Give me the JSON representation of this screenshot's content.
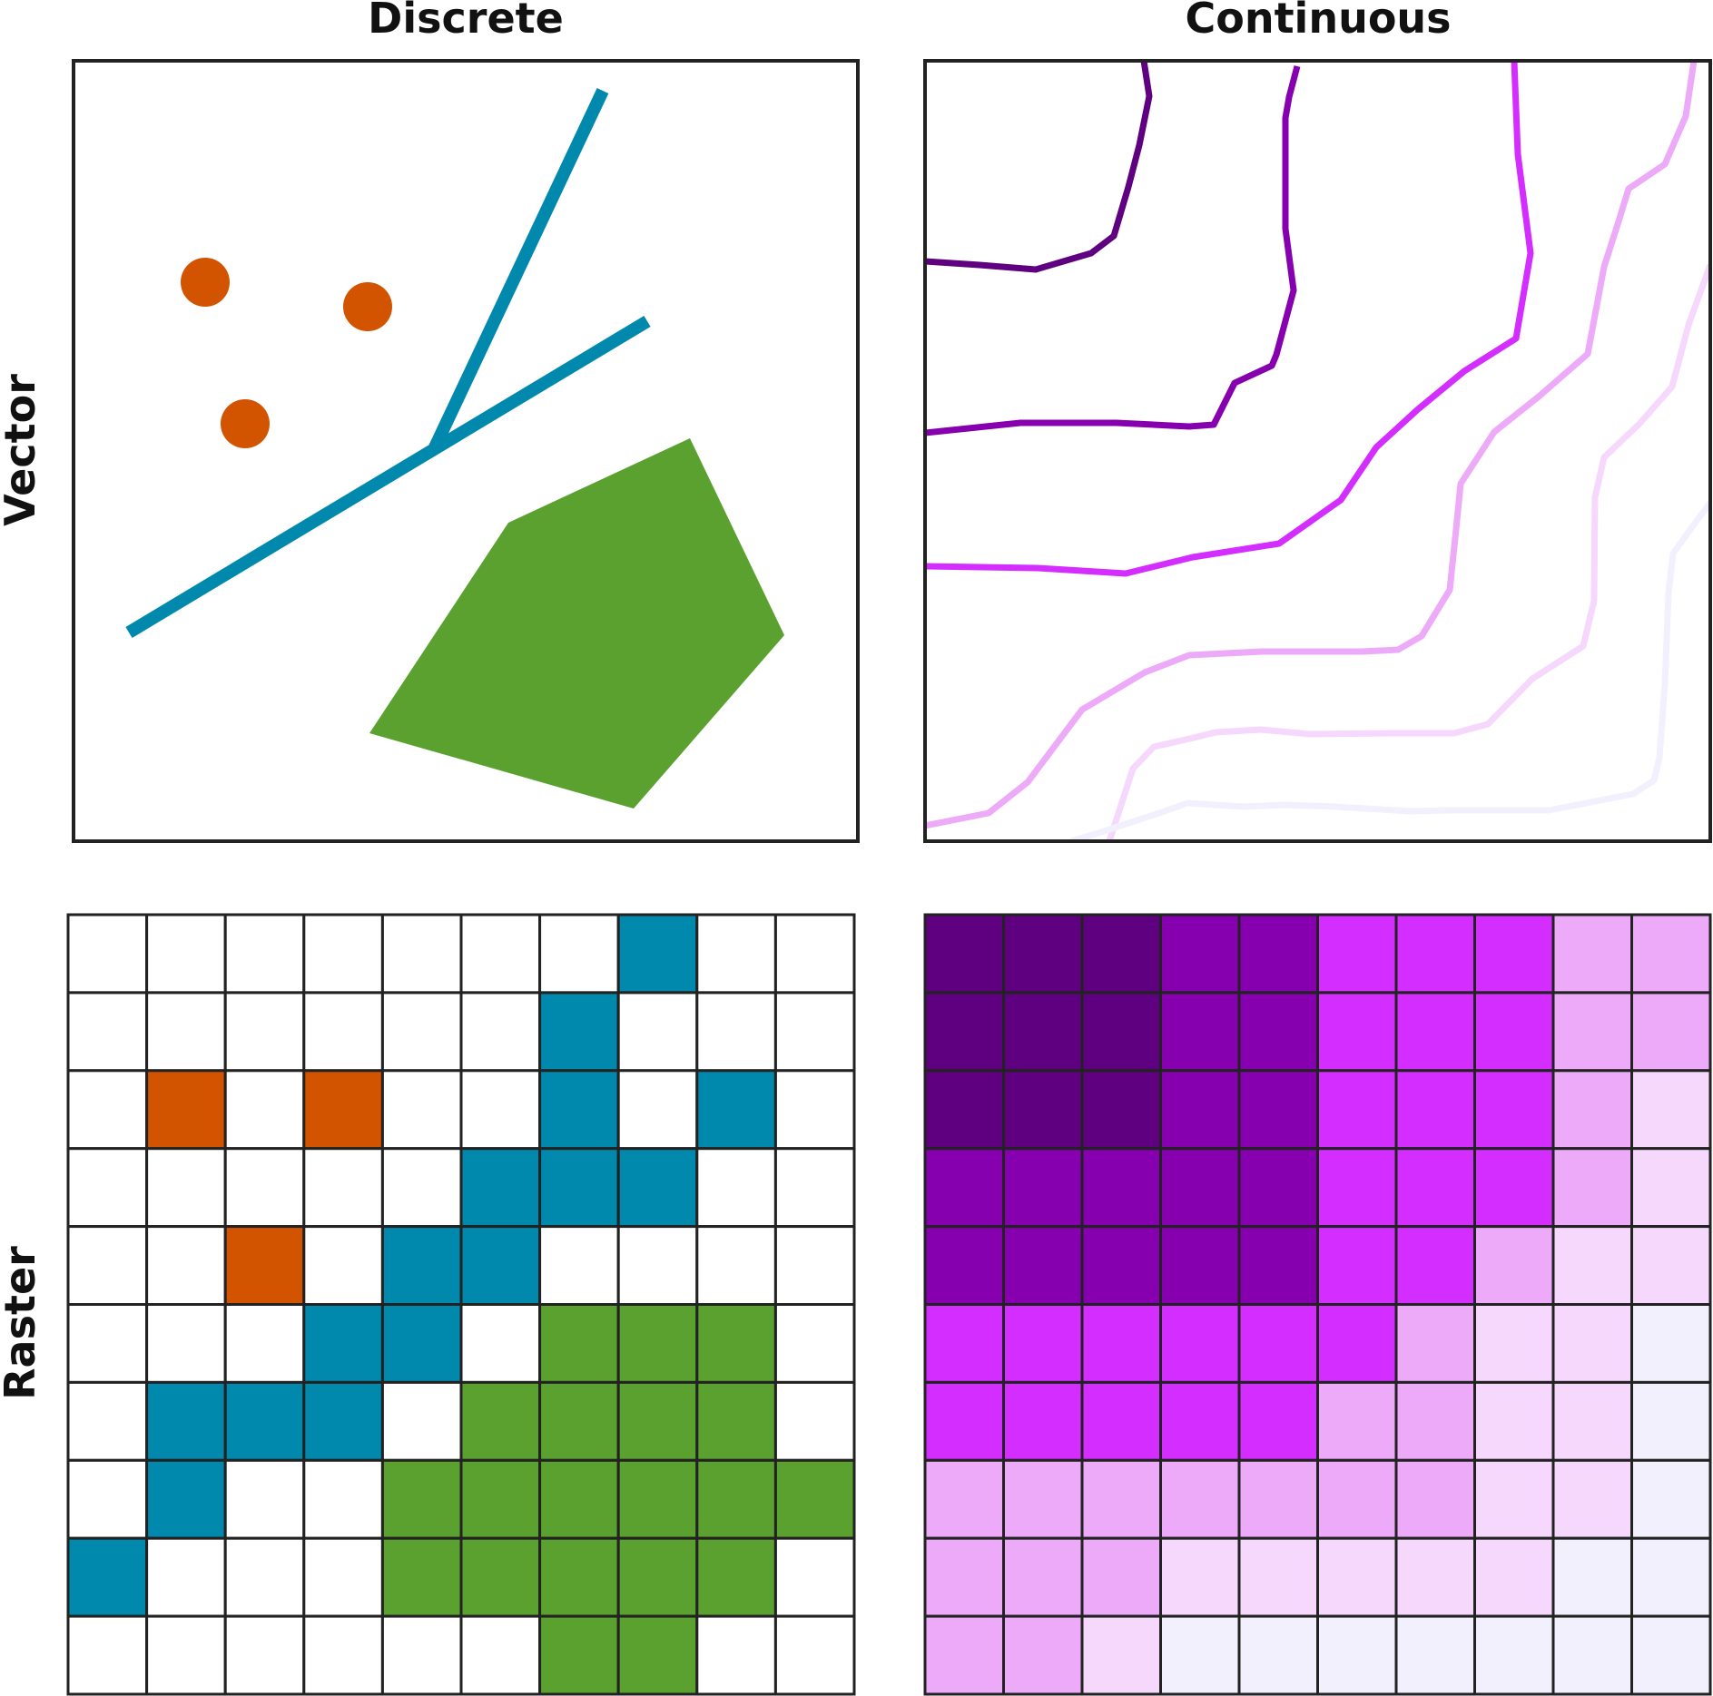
{
  "headers": {
    "col1": "Discrete",
    "col2": "Continuous",
    "row1": "Vector",
    "row2": "Raster"
  },
  "colors": {
    "frame": "#222222",
    "points": "#d35400",
    "lines": "#0088ad",
    "polygon": "#5ba12f",
    "empty": "#ffffff",
    "levels": [
      "#ffffff",
      "#d35400",
      "#0088ad",
      "#5ba12f"
    ],
    "continuous": [
      "#5f0080",
      "#8600b0",
      "#d42dff",
      "#ecaaf8",
      "#f5d8fc",
      "#f3f0fd"
    ]
  },
  "raster_discrete": {
    "rows": 10,
    "cols": 10,
    "legend_codes": {
      "0": "empty",
      "1": "point",
      "2": "line",
      "3": "polygon"
    },
    "cells": [
      [
        0,
        0,
        0,
        0,
        0,
        0,
        0,
        2,
        0,
        0
      ],
      [
        0,
        0,
        0,
        0,
        0,
        0,
        2,
        0,
        0,
        0
      ],
      [
        0,
        1,
        0,
        1,
        0,
        0,
        2,
        0,
        2,
        0
      ],
      [
        0,
        0,
        0,
        0,
        0,
        2,
        2,
        2,
        0,
        0
      ],
      [
        0,
        0,
        1,
        0,
        2,
        2,
        0,
        0,
        0,
        0
      ],
      [
        0,
        0,
        0,
        2,
        2,
        0,
        3,
        3,
        3,
        0
      ],
      [
        0,
        2,
        2,
        2,
        0,
        3,
        3,
        3,
        3,
        0
      ],
      [
        0,
        2,
        0,
        0,
        3,
        3,
        3,
        3,
        3,
        3
      ],
      [
        2,
        0,
        0,
        0,
        3,
        3,
        3,
        3,
        3,
        0
      ],
      [
        0,
        0,
        0,
        0,
        0,
        0,
        3,
        3,
        0,
        0
      ]
    ]
  },
  "raster_continuous": {
    "rows": 10,
    "cols": 10,
    "cells": [
      [
        0,
        0,
        0,
        1,
        1,
        2,
        2,
        2,
        3,
        3
      ],
      [
        0,
        0,
        0,
        1,
        1,
        2,
        2,
        2,
        3,
        3
      ],
      [
        0,
        0,
        0,
        1,
        1,
        2,
        2,
        2,
        3,
        4
      ],
      [
        1,
        1,
        1,
        1,
        1,
        2,
        2,
        2,
        3,
        4
      ],
      [
        1,
        1,
        1,
        1,
        1,
        2,
        2,
        3,
        4,
        4
      ],
      [
        2,
        2,
        2,
        2,
        2,
        2,
        3,
        4,
        4,
        5
      ],
      [
        2,
        2,
        2,
        2,
        2,
        3,
        3,
        4,
        4,
        5
      ],
      [
        3,
        3,
        3,
        3,
        3,
        3,
        3,
        4,
        4,
        5
      ],
      [
        3,
        3,
        3,
        4,
        4,
        4,
        4,
        4,
        5,
        5
      ],
      [
        3,
        3,
        4,
        5,
        5,
        5,
        5,
        5,
        5,
        5
      ]
    ]
  },
  "vector_continuous": {
    "contour_count": 6
  }
}
